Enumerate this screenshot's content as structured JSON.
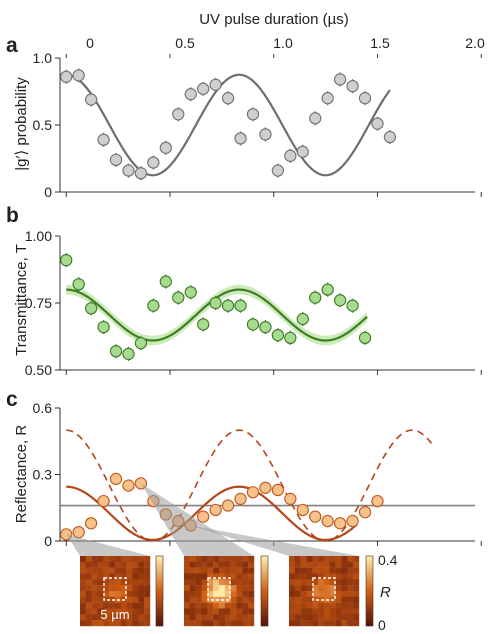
{
  "figure": {
    "top_xlabel": "UV pulse duration (µs)"
  },
  "x_ticks": [
    "0",
    "0.5",
    "1.0",
    "1.5",
    "2.0"
  ],
  "colors": {
    "a_marker": "#cfcfcf",
    "a_edge": "#707070",
    "a_line": "#6e6e6e",
    "b_marker": "#a7db8f",
    "b_edge": "#3d7a25",
    "b_line": "#3f7f1f",
    "b_band": "#c7e8b5",
    "c_marker": "#f7c18a",
    "c_edge": "#c0581f",
    "c_line": "#b5461c",
    "c_dashed": "#b5461c",
    "c_hline": "#808080"
  },
  "chart_data": [
    {
      "panel": "a",
      "type": "scatter",
      "xlabel": "UV pulse duration (µs)",
      "ylabel": "|g′⟩ probability",
      "xlim": [
        -0.03,
        1.97
      ],
      "ylim": [
        0,
        1.0
      ],
      "yticks": [
        "0",
        "0.5",
        "1.0"
      ],
      "points": [
        {
          "x": 0.0,
          "y": 0.86
        },
        {
          "x": 0.06,
          "y": 0.87
        },
        {
          "x": 0.12,
          "y": 0.69
        },
        {
          "x": 0.18,
          "y": 0.39
        },
        {
          "x": 0.24,
          "y": 0.24
        },
        {
          "x": 0.3,
          "y": 0.16
        },
        {
          "x": 0.36,
          "y": 0.14
        },
        {
          "x": 0.42,
          "y": 0.22
        },
        {
          "x": 0.48,
          "y": 0.33
        },
        {
          "x": 0.54,
          "y": 0.58
        },
        {
          "x": 0.6,
          "y": 0.73
        },
        {
          "x": 0.66,
          "y": 0.77
        },
        {
          "x": 0.72,
          "y": 0.8
        },
        {
          "x": 0.78,
          "y": 0.7
        },
        {
          "x": 0.84,
          "y": 0.4
        },
        {
          "x": 0.9,
          "y": 0.58
        },
        {
          "x": 0.96,
          "y": 0.43
        },
        {
          "x": 1.02,
          "y": 0.16
        },
        {
          "x": 1.08,
          "y": 0.27
        },
        {
          "x": 1.14,
          "y": 0.3
        },
        {
          "x": 1.2,
          "y": 0.55
        },
        {
          "x": 1.26,
          "y": 0.7
        },
        {
          "x": 1.32,
          "y": 0.84
        },
        {
          "x": 1.38,
          "y": 0.79
        },
        {
          "x": 1.44,
          "y": 0.7
        },
        {
          "x": 1.5,
          "y": 0.51
        },
        {
          "x": 1.56,
          "y": 0.41
        }
      ],
      "fit": {
        "offset": 0.5,
        "amplitude": 0.375,
        "frequency": 1.2,
        "phase": 0,
        "x_range": [
          0,
          1.56
        ]
      }
    },
    {
      "panel": "b",
      "type": "scatter",
      "xlabel": "UV pulse duration (µs)",
      "ylabel": "Transmittance, T",
      "xlim": [
        -0.03,
        1.97
      ],
      "ylim": [
        0.5,
        1.0
      ],
      "yticks": [
        "0.50",
        "0.75",
        "1.00"
      ],
      "points": [
        {
          "x": 0.0,
          "y": 0.91
        },
        {
          "x": 0.06,
          "y": 0.82
        },
        {
          "x": 0.12,
          "y": 0.73
        },
        {
          "x": 0.18,
          "y": 0.66
        },
        {
          "x": 0.24,
          "y": 0.57
        },
        {
          "x": 0.3,
          "y": 0.56
        },
        {
          "x": 0.36,
          "y": 0.6
        },
        {
          "x": 0.42,
          "y": 0.74
        },
        {
          "x": 0.48,
          "y": 0.83
        },
        {
          "x": 0.54,
          "y": 0.77
        },
        {
          "x": 0.6,
          "y": 0.79
        },
        {
          "x": 0.66,
          "y": 0.67
        },
        {
          "x": 0.72,
          "y": 0.75
        },
        {
          "x": 0.78,
          "y": 0.74
        },
        {
          "x": 0.84,
          "y": 0.74
        },
        {
          "x": 0.9,
          "y": 0.67
        },
        {
          "x": 0.96,
          "y": 0.66
        },
        {
          "x": 1.02,
          "y": 0.63
        },
        {
          "x": 1.08,
          "y": 0.62
        },
        {
          "x": 1.14,
          "y": 0.69
        },
        {
          "x": 1.2,
          "y": 0.77
        },
        {
          "x": 1.26,
          "y": 0.8
        },
        {
          "x": 1.32,
          "y": 0.76
        },
        {
          "x": 1.38,
          "y": 0.74
        },
        {
          "x": 1.44,
          "y": 0.62
        }
      ],
      "fit": {
        "offset": 0.705,
        "amplitude": 0.095,
        "frequency": 1.2,
        "phase": 0,
        "x_range": [
          0,
          1.45
        ],
        "band": 0.018
      }
    },
    {
      "panel": "c",
      "type": "scatter",
      "xlabel": "UV pulse duration (µs)",
      "ylabel": "Reflectance, R",
      "xlim": [
        -0.03,
        1.97
      ],
      "ylim": [
        0,
        0.6
      ],
      "yticks": [
        "0",
        "0.3",
        "0.6"
      ],
      "points": [
        {
          "x": 0.0,
          "y": 0.03
        },
        {
          "x": 0.06,
          "y": 0.04
        },
        {
          "x": 0.12,
          "y": 0.08
        },
        {
          "x": 0.18,
          "y": 0.18
        },
        {
          "x": 0.24,
          "y": 0.28
        },
        {
          "x": 0.3,
          "y": 0.25
        },
        {
          "x": 0.36,
          "y": 0.26
        },
        {
          "x": 0.42,
          "y": 0.18
        },
        {
          "x": 0.48,
          "y": 0.12
        },
        {
          "x": 0.54,
          "y": 0.09
        },
        {
          "x": 0.6,
          "y": 0.07
        },
        {
          "x": 0.66,
          "y": 0.11
        },
        {
          "x": 0.72,
          "y": 0.14
        },
        {
          "x": 0.78,
          "y": 0.16
        },
        {
          "x": 0.84,
          "y": 0.19
        },
        {
          "x": 0.9,
          "y": 0.22
        },
        {
          "x": 0.96,
          "y": 0.24
        },
        {
          "x": 1.02,
          "y": 0.23
        },
        {
          "x": 1.08,
          "y": 0.19
        },
        {
          "x": 1.14,
          "y": 0.14
        },
        {
          "x": 1.2,
          "y": 0.11
        },
        {
          "x": 1.26,
          "y": 0.09
        },
        {
          "x": 1.32,
          "y": 0.08
        },
        {
          "x": 1.38,
          "y": 0.09
        },
        {
          "x": 1.44,
          "y": 0.13
        },
        {
          "x": 1.5,
          "y": 0.18
        }
      ],
      "fit": {
        "offset": 0.125,
        "amplitude": 0.12,
        "frequency": 1.2,
        "phase": 0,
        "x_range": [
          0.0,
          1.4
        ]
      },
      "dashed": {
        "offset": 0.25,
        "amplitude": 0.25,
        "frequency": 1.2,
        "phase": 0,
        "x_range": [
          0.0,
          1.76
        ]
      },
      "hline": 0.16
    }
  ],
  "insets": {
    "scale_label": "5 µm",
    "colorbar": {
      "label": "R",
      "max": "0.4",
      "min": "0"
    },
    "pointers_to_x": [
      0.0,
      0.36,
      0.6
    ]
  }
}
